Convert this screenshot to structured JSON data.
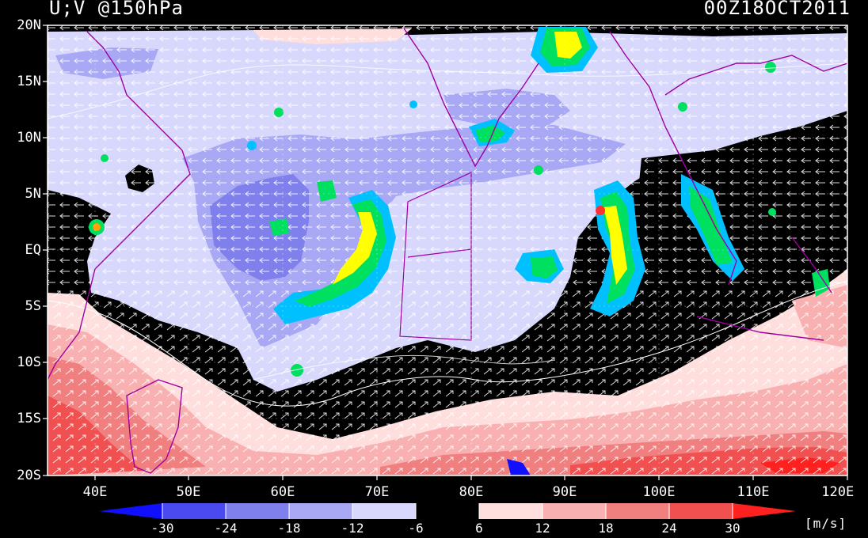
{
  "title_left": "U;V @150hPa",
  "title_right": "00Z18OCT2011",
  "lat_labels": [
    "20N",
    "15N",
    "10N",
    "5N",
    "EQ",
    "5S",
    "10S",
    "15S",
    "20S"
  ],
  "lon_labels": [
    "40E",
    "50E",
    "60E",
    "70E",
    "80E",
    "90E",
    "100E",
    "110E",
    "120E"
  ],
  "colorbar_labels": [
    "-30",
    "-24",
    "-18",
    "-12",
    "-6",
    "6",
    "12",
    "18",
    "24",
    "30"
  ],
  "colorbar_colors": [
    "#1010ff",
    "#4a4af0",
    "#8080ec",
    "#a8a8f4",
    "#d8d8fc",
    "#000000",
    "#ffdede",
    "#f8b0b0",
    "#f08080",
    "#f05050",
    "#ff2020"
  ],
  "units": "[m/s]"
}
